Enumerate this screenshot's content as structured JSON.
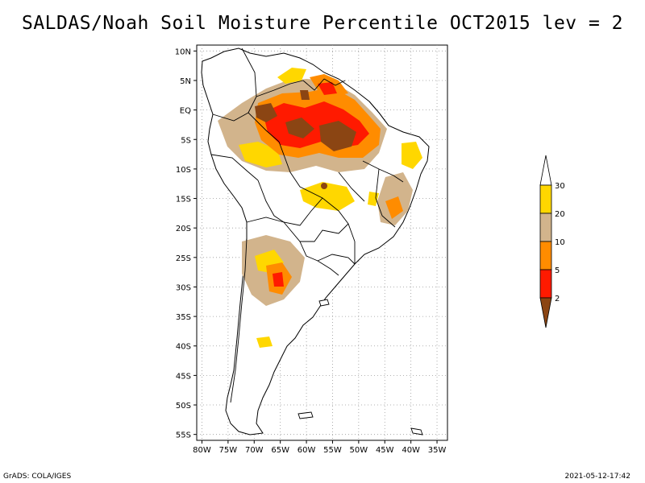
{
  "title": "SALDAS/Noah Soil Moisture Percentile OCT2015 lev = 2",
  "footer": {
    "left": "GrADS: COLA/IGES",
    "right": "2021-05-12-17:42"
  },
  "map": {
    "lat_labels": [
      "10N",
      "5N",
      "EQ",
      "5S",
      "10S",
      "15S",
      "20S",
      "25S",
      "30S",
      "35S",
      "40S",
      "45S",
      "50S",
      "55S"
    ],
    "lon_labels": [
      "80W",
      "75W",
      "70W",
      "65W",
      "60W",
      "55W",
      "50W",
      "45W",
      "40W",
      "35W"
    ],
    "lat_values": [
      10,
      5,
      0,
      -5,
      -10,
      -15,
      -20,
      -25,
      -30,
      -35,
      -40,
      -45,
      -50,
      -55
    ],
    "lon_values": [
      -80,
      -75,
      -70,
      -65,
      -60,
      -55,
      -50,
      -45,
      -40,
      -35
    ],
    "lat_range": [
      -56,
      11
    ],
    "lon_range": [
      -81,
      -33
    ],
    "grid": true
  },
  "legend": {
    "labels": [
      "2",
      "5",
      "10",
      "20",
      "30"
    ],
    "colors": [
      "#8b4513",
      "#ff1a00",
      "#ff8c00",
      "#d2b48c",
      "#ffd700",
      "#ffffff"
    ]
  }
}
